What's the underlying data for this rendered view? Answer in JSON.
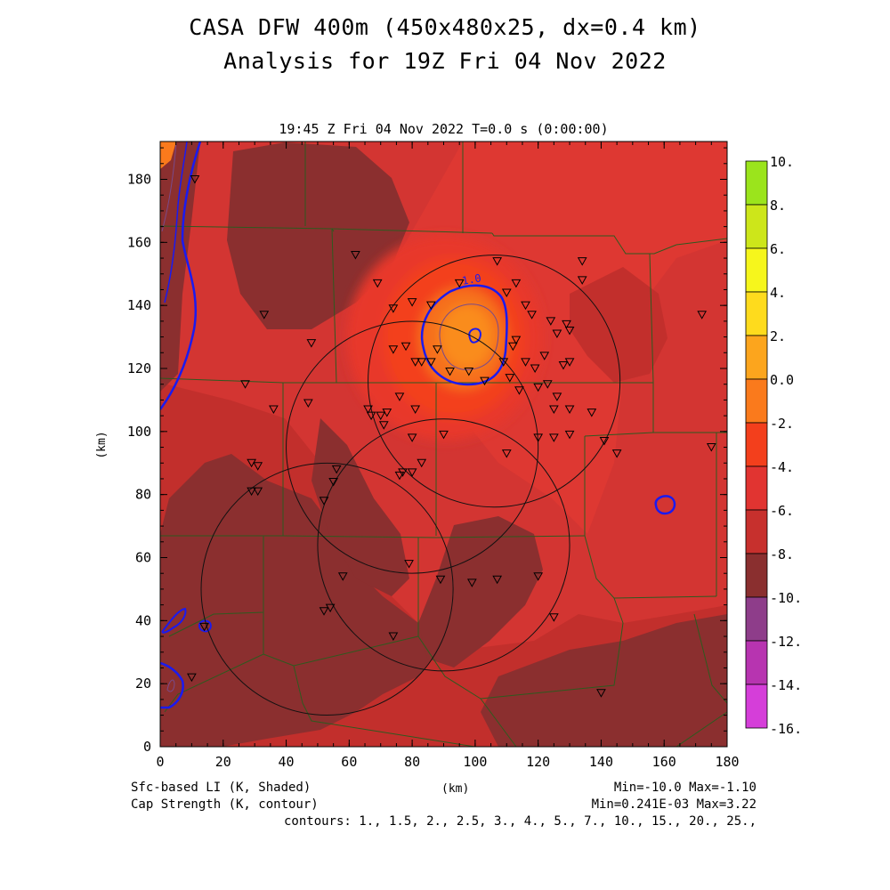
{
  "title": "CASA DFW 400m (450x480x25, dx=0.4 km)",
  "subtitle": "Analysis for 19Z Fri 04 Nov 2022",
  "valid_time": "19:45 Z Fri 04 Nov 2022    T=0.0 s (0:00:00)",
  "x_axis": {
    "label": "(km)",
    "range": [
      0,
      180
    ],
    "ticks": [
      "0",
      "20",
      "40",
      "60",
      "80",
      "100",
      "120",
      "140",
      "160",
      "180"
    ]
  },
  "y_axis": {
    "label": "(km)",
    "range": [
      0,
      192
    ],
    "ticks": [
      "0",
      "20",
      "40",
      "60",
      "80",
      "100",
      "120",
      "140",
      "160",
      "180"
    ]
  },
  "shaded_field": {
    "name": "Sfc-based LI (K, Shaded)",
    "stats": "Min=-10.0 Max=-1.10"
  },
  "contour_field": {
    "name": "Cap Strength (K, contour)",
    "stats": "Min=0.241E-03 Max=3.22"
  },
  "contour_levels": "contours: 1., 1.5, 2., 2.5, 3., 4., 5., 7., 10., 15., 20., 25.,",
  "contour_label": "1.0",
  "colorbar": {
    "labels": [
      "10.",
      "8.",
      "6.",
      "4.",
      "2.",
      "0.0",
      "-2.",
      "-4.",
      "-6.",
      "-8.",
      "-10.",
      "-12.",
      "-14.",
      "-16."
    ],
    "colors": [
      "#9be41c",
      "#cde61a",
      "#f6f61c",
      "#fedb1d",
      "#fca51d",
      "#fa7a1c",
      "#f33f1c",
      "#e13431",
      "#c7302d",
      "#8a2f2f",
      "#8e3d8a",
      "#b734b0",
      "#d53ed9"
    ]
  },
  "colors": {
    "background": "#d33532",
    "dark_shade": "#8b2f2f",
    "mid_shade": "#c22f2c",
    "orange_core": "#f6701e",
    "contour": "#1a1af0",
    "boundary": "#2e5a1f"
  },
  "radar_rings_km": [
    {
      "x": 106,
      "y": 116,
      "r": 40
    },
    {
      "x": 80,
      "y": 95,
      "r": 40
    },
    {
      "x": 90,
      "y": 64,
      "r": 40
    },
    {
      "x": 53,
      "y": 50,
      "r": 40
    }
  ],
  "stations": [
    [
      11,
      180
    ],
    [
      33,
      137
    ],
    [
      48,
      128
    ],
    [
      62,
      156
    ],
    [
      69,
      147
    ],
    [
      74,
      139
    ],
    [
      80,
      141
    ],
    [
      86,
      140
    ],
    [
      95,
      147
    ],
    [
      107,
      154
    ],
    [
      110,
      144
    ],
    [
      113,
      147
    ],
    [
      116,
      140
    ],
    [
      134,
      154
    ],
    [
      134,
      148
    ],
    [
      172,
      137
    ],
    [
      129,
      134
    ],
    [
      124,
      135
    ],
    [
      118,
      137
    ],
    [
      130,
      132
    ],
    [
      126,
      131
    ],
    [
      113,
      129
    ],
    [
      112,
      127
    ],
    [
      116,
      122
    ],
    [
      119,
      120
    ],
    [
      122,
      124
    ],
    [
      128,
      121
    ],
    [
      130,
      122
    ],
    [
      74,
      126
    ],
    [
      78,
      127
    ],
    [
      81,
      122
    ],
    [
      83,
      122
    ],
    [
      86,
      122
    ],
    [
      88,
      126
    ],
    [
      92,
      119
    ],
    [
      98,
      119
    ],
    [
      103,
      116
    ],
    [
      109,
      122
    ],
    [
      111,
      117
    ],
    [
      114,
      113
    ],
    [
      120,
      114
    ],
    [
      123,
      115
    ],
    [
      125,
      107
    ],
    [
      126,
      111
    ],
    [
      130,
      107
    ],
    [
      137,
      106
    ],
    [
      27,
      115
    ],
    [
      36,
      107
    ],
    [
      47,
      109
    ],
    [
      66,
      107
    ],
    [
      67,
      105
    ],
    [
      70,
      105
    ],
    [
      72,
      106
    ],
    [
      71,
      102
    ],
    [
      76,
      111
    ],
    [
      81,
      107
    ],
    [
      80,
      98
    ],
    [
      90,
      99
    ],
    [
      110,
      93
    ],
    [
      120,
      98
    ],
    [
      125,
      98
    ],
    [
      130,
      99
    ],
    [
      141,
      97
    ],
    [
      145,
      93
    ],
    [
      175,
      95
    ],
    [
      29,
      90
    ],
    [
      31,
      89
    ],
    [
      29,
      81
    ],
    [
      31,
      81
    ],
    [
      52,
      78
    ],
    [
      55,
      84
    ],
    [
      56,
      88
    ],
    [
      76,
      86
    ],
    [
      83,
      90
    ],
    [
      80,
      87
    ],
    [
      77,
      87
    ],
    [
      79,
      58
    ],
    [
      89,
      53
    ],
    [
      99,
      52
    ],
    [
      107,
      53
    ],
    [
      120,
      54
    ],
    [
      125,
      41
    ],
    [
      140,
      17
    ],
    [
      58,
      54
    ],
    [
      52,
      43
    ],
    [
      54,
      44
    ],
    [
      74,
      35
    ],
    [
      10,
      22
    ],
    [
      14,
      38
    ]
  ]
}
